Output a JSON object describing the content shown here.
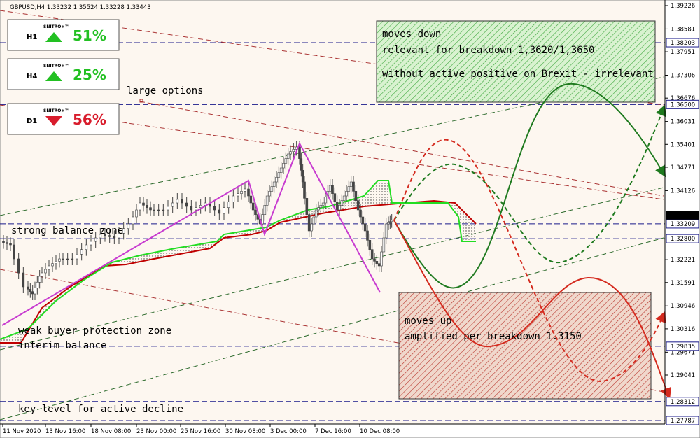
{
  "header": {
    "symbol": "GBPUSD,H4",
    "quote": "1.33232 1.35524 1.33228 1.33443"
  },
  "signals": [
    {
      "timeframe": "H1",
      "brand": "SNITRO+™",
      "direction": "up",
      "color": "#22c022",
      "value": "51%"
    },
    {
      "timeframe": "H4",
      "brand": "SNITRO+™",
      "direction": "up",
      "color": "#22c022",
      "value": "25%"
    },
    {
      "timeframe": "D1",
      "brand": "SNITRO+™",
      "direction": "down",
      "color": "#d81c2c",
      "value": "56%"
    }
  ],
  "price_scale": [
    "1.39226",
    "1.38581",
    "1.37951",
    "1.37306",
    "1.36676",
    "1.36031",
    "1.35401",
    "1.34771",
    "1.34126",
    "1.32221",
    "1.31591",
    "1.30946",
    "1.30316",
    "1.29671",
    "1.29041"
  ],
  "price_levels": [
    "1.38203",
    "1.36500",
    "1.33209",
    "1.32800",
    "1.29835",
    "1.28312",
    "1.27787"
  ],
  "current_price": "1.33443",
  "time_axis": [
    "11 Nov 2020",
    "13 Nov 16:00",
    "18 Nov 08:00",
    "23 Nov 00:00",
    "25 Nov 16:00",
    "30 Nov 08:00",
    "3 Dec 00:00",
    "7 Dec 16:00",
    "10 Dec 08:00"
  ],
  "annotations": [
    "large options",
    "strong balance zone",
    "weak buyer protection zone",
    "interim balance",
    "key level for active decline"
  ],
  "boxes": [
    {
      "lines": [
        "moves down",
        "relevant for breakdown 1,3620/1,3650",
        "without active positive on Brexit - irrelevant"
      ]
    },
    {
      "lines": [
        "moves up",
        "amplified per breakdown 1.3150"
      ]
    }
  ]
}
